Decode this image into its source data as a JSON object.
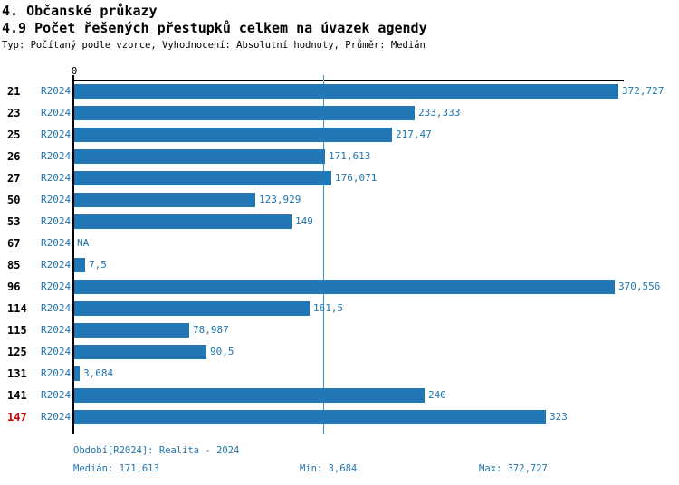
{
  "header": {
    "section_title": "4. Občanské průkazy",
    "chart_title": "4.9 Počet řešených přestupků celkem na úvazek agendy",
    "subtitle": "Typ: Počítaný podle vzorce, Vyhodnocení: Absolutní hodnoty, Průměr: Medián"
  },
  "chart_data": {
    "type": "bar",
    "orientation": "horizontal",
    "title": "4.9 Počet řešených přestupků celkem na úvazek agendy",
    "series_label": "R2024",
    "axis_zero_label": "0",
    "xlim": [
      0,
      377
    ],
    "median": 171.613,
    "grid": false,
    "categories": [
      "21",
      "23",
      "25",
      "26",
      "27",
      "50",
      "53",
      "67",
      "85",
      "96",
      "114",
      "115",
      "125",
      "131",
      "141",
      "147"
    ],
    "values": [
      372.727,
      233.333,
      217.47,
      171.613,
      176.071,
      123.929,
      149,
      null,
      7.5,
      370.556,
      161.5,
      78.987,
      90.5,
      3.684,
      240,
      323
    ],
    "rows": [
      {
        "category": "21",
        "period": "R2024",
        "value": 372.727,
        "label": "372,727",
        "highlight": false
      },
      {
        "category": "23",
        "period": "R2024",
        "value": 233.333,
        "label": "233,333",
        "highlight": false
      },
      {
        "category": "25",
        "period": "R2024",
        "value": 217.47,
        "label": "217,47",
        "highlight": false
      },
      {
        "category": "26",
        "period": "R2024",
        "value": 171.613,
        "label": "171,613",
        "highlight": false
      },
      {
        "category": "27",
        "period": "R2024",
        "value": 176.071,
        "label": "176,071",
        "highlight": false
      },
      {
        "category": "50",
        "period": "R2024",
        "value": 123.929,
        "label": "123,929",
        "highlight": false
      },
      {
        "category": "53",
        "period": "R2024",
        "value": 149,
        "label": "149",
        "highlight": false
      },
      {
        "category": "67",
        "period": "R2024",
        "value": null,
        "label": "NA",
        "highlight": false
      },
      {
        "category": "85",
        "period": "R2024",
        "value": 7.5,
        "label": "7,5",
        "highlight": false
      },
      {
        "category": "96",
        "period": "R2024",
        "value": 370.556,
        "label": "370,556",
        "highlight": false
      },
      {
        "category": "114",
        "period": "R2024",
        "value": 161.5,
        "label": "161,5",
        "highlight": false
      },
      {
        "category": "115",
        "period": "R2024",
        "value": 78.987,
        "label": "78,987",
        "highlight": false
      },
      {
        "category": "125",
        "period": "R2024",
        "value": 90.5,
        "label": "90,5",
        "highlight": false
      },
      {
        "category": "131",
        "period": "R2024",
        "value": 3.684,
        "label": "3,684",
        "highlight": false
      },
      {
        "category": "141",
        "period": "R2024",
        "value": 240,
        "label": "240",
        "highlight": false
      },
      {
        "category": "147",
        "period": "R2024",
        "value": 323,
        "label": "323",
        "highlight": true
      }
    ]
  },
  "footer": {
    "period_line": "Období[R2024]: Realita - 2024",
    "median": "Medián: 171,613",
    "min": "Min: 3,684",
    "max": "Max: 372,727"
  },
  "colors": {
    "bar": "#2277b5",
    "label_blue": "#2176b0",
    "highlight_red": "#d40000",
    "axis_black": "#000000",
    "median_line": "#3a8ec4"
  }
}
